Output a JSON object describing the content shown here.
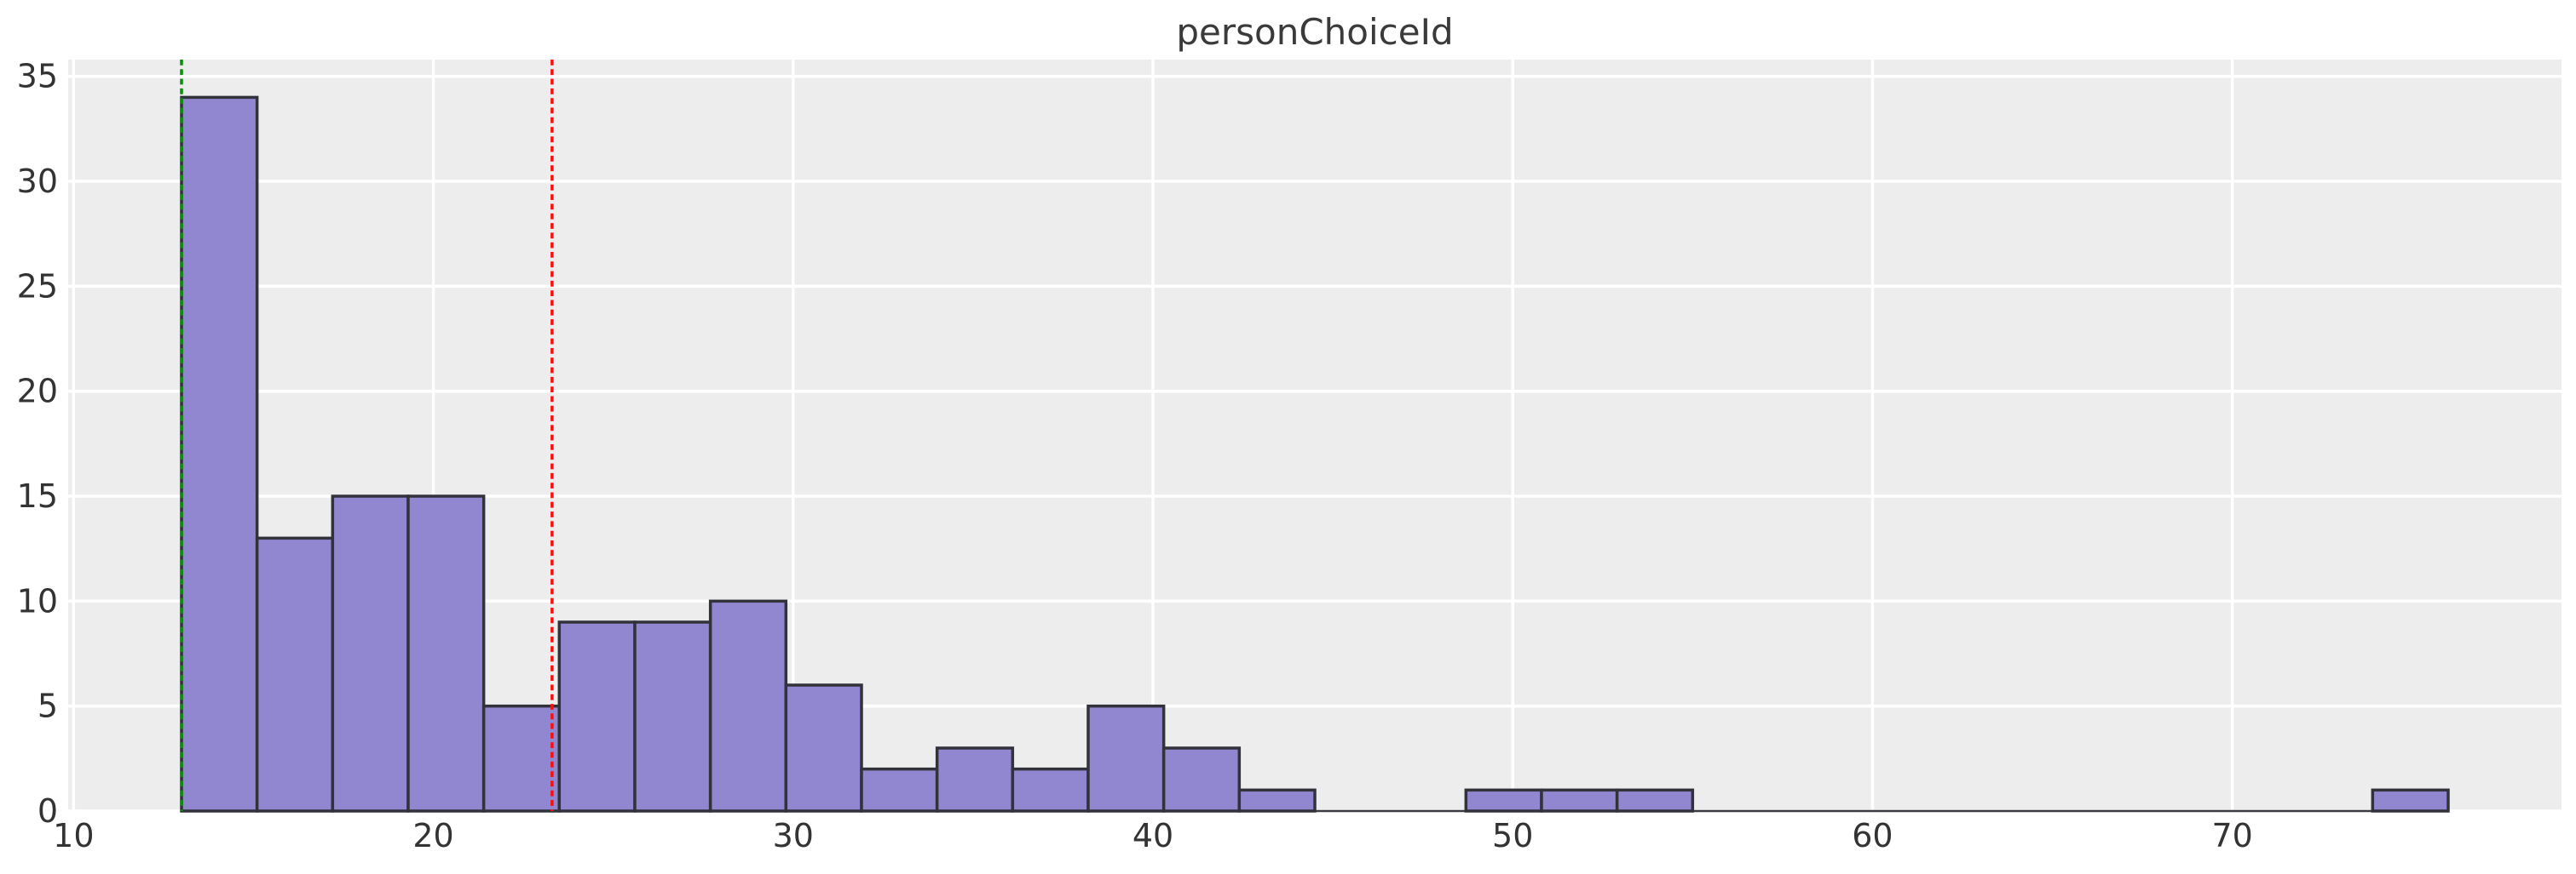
{
  "chart_data": {
    "type": "histogram",
    "title": "personChoiceId",
    "xlabel": "",
    "ylabel": "",
    "bin_start": 13,
    "bin_end": 76,
    "num_bins": 30,
    "bin_width": 2.1,
    "counts": [
      34,
      13,
      15,
      15,
      5,
      9,
      9,
      10,
      6,
      2,
      3,
      2,
      5,
      3,
      1,
      0,
      0,
      1,
      1,
      1,
      0,
      0,
      0,
      0,
      0,
      0,
      0,
      0,
      0,
      1
    ],
    "total_count": 136,
    "xlim": [
      9.85,
      79.15
    ],
    "ylim": [
      0,
      35.8
    ],
    "xticks": [
      10,
      20,
      30,
      40,
      50,
      60,
      70
    ],
    "yticks": [
      0,
      5,
      10,
      15,
      20,
      25,
      30,
      35
    ],
    "grid": true,
    "legend": null,
    "annotations": [
      {
        "name": "min-line",
        "x": 13,
        "color": "#0a8f0a",
        "style": "dashed"
      },
      {
        "name": "mean-line",
        "x": 23.3,
        "color": "#fb0e0e",
        "style": "dashed"
      }
    ],
    "colors": {
      "bar_fill": "#9187d1",
      "bar_edge": "#32323a",
      "plot_bg": "#ededed",
      "grid_line": "#ffffff",
      "title_text": "#3a3a3a",
      "tick_text": "#333333",
      "zero_baseline": "#3a3a40"
    }
  }
}
